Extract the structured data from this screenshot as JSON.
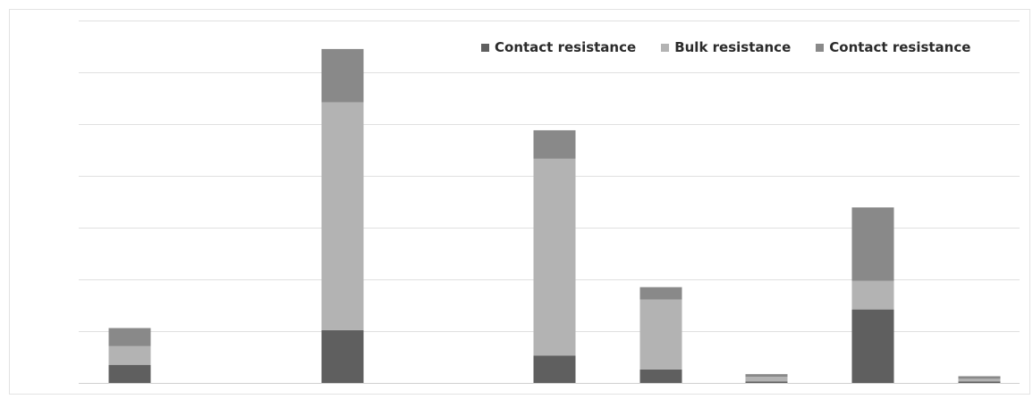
{
  "chart_data": {
    "type": "bar",
    "stacked": true,
    "title": "",
    "xlabel": "",
    "ylabel": "",
    "grid": true,
    "legend_position": "top-right",
    "categories": [
      "",
      "",
      "",
      "",
      "",
      "",
      "",
      "",
      ""
    ],
    "ylim": [
      0,
      7.2
    ],
    "series": [
      {
        "name": "Contact resistance",
        "color": "#5f5f5f",
        "values": [
          0.35,
          0,
          1.02,
          0,
          0.53,
          0.26,
          0.03,
          1.42,
          0.03
        ]
      },
      {
        "name": "Bulk resistance",
        "color": "#b3b3b3",
        "values": [
          0.36,
          0,
          4.4,
          0,
          3.8,
          1.35,
          0.09,
          0.55,
          0.05
        ]
      },
      {
        "name": "Contact resistance",
        "color": "#898989",
        "values": [
          0.35,
          0,
          1.03,
          0,
          0.55,
          0.24,
          0.05,
          1.42,
          0.05
        ]
      }
    ]
  }
}
